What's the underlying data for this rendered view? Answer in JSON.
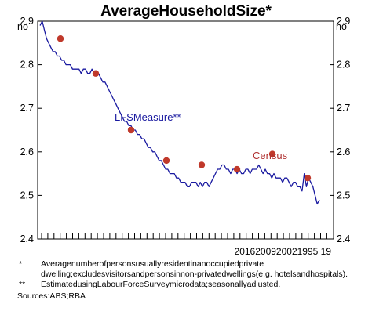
{
  "chart_data": {
    "type": "line",
    "title": "AverageHouseholdSize*",
    "unit_left": "no",
    "unit_right": "no",
    "ylim": [
      2.4,
      2.9
    ],
    "yticks": [
      "2.4",
      "2.5",
      "2.6",
      "2.7",
      "2.8",
      "2.9"
    ],
    "x_tick_label_text": "2016200920021995 19",
    "annotations": {
      "lfs": "LFSMeasure**",
      "census": "Census"
    },
    "series": [
      {
        "name": "LFSMeasure**",
        "color": "#1a1aa0",
        "values": [
          2.89,
          2.9,
          2.88,
          2.86,
          2.85,
          2.84,
          2.83,
          2.83,
          2.82,
          2.82,
          2.81,
          2.81,
          2.8,
          2.8,
          2.8,
          2.79,
          2.79,
          2.79,
          2.79,
          2.78,
          2.79,
          2.79,
          2.78,
          2.78,
          2.79,
          2.78,
          2.78,
          2.78,
          2.77,
          2.76,
          2.76,
          2.75,
          2.74,
          2.73,
          2.72,
          2.71,
          2.7,
          2.69,
          2.68,
          2.67,
          2.67,
          2.66,
          2.66,
          2.65,
          2.65,
          2.64,
          2.64,
          2.63,
          2.63,
          2.62,
          2.61,
          2.61,
          2.6,
          2.6,
          2.59,
          2.58,
          2.58,
          2.57,
          2.56,
          2.56,
          2.55,
          2.55,
          2.55,
          2.54,
          2.54,
          2.53,
          2.53,
          2.53,
          2.52,
          2.52,
          2.53,
          2.53,
          2.53,
          2.52,
          2.53,
          2.52,
          2.53,
          2.53,
          2.52,
          2.53,
          2.54,
          2.55,
          2.56,
          2.56,
          2.57,
          2.57,
          2.56,
          2.56,
          2.55,
          2.56,
          2.56,
          2.55,
          2.56,
          2.55,
          2.55,
          2.56,
          2.56,
          2.55,
          2.56,
          2.56,
          2.56,
          2.57,
          2.56,
          2.55,
          2.56,
          2.55,
          2.55,
          2.54,
          2.55,
          2.54,
          2.54,
          2.54,
          2.53,
          2.54,
          2.54,
          2.53,
          2.52,
          2.53,
          2.53,
          2.52,
          2.52,
          2.51,
          2.55,
          2.52,
          2.54,
          2.53,
          2.52,
          2.5,
          2.48,
          2.49
        ]
      },
      {
        "name": "Census",
        "type": "scatter",
        "color": "#c0392b",
        "values": [
          2.86,
          2.78,
          2.65,
          2.58,
          2.57,
          2.56,
          2.595,
          2.54
        ]
      }
    ]
  },
  "notes": [
    {
      "mark": "*",
      "text": "Averagenumberofpersonsusuallyresidentinanoccupiedprivate dwelling;excludesvisitorsandpersonsinnon-privatedwellings(e.g. hotelsandhospitals)."
    },
    {
      "mark": "**",
      "text": "EstimatedusingLabourForceSurveymicrodata;seasonallyadjusted."
    }
  ],
  "source": "Sources:ABS;RBA"
}
